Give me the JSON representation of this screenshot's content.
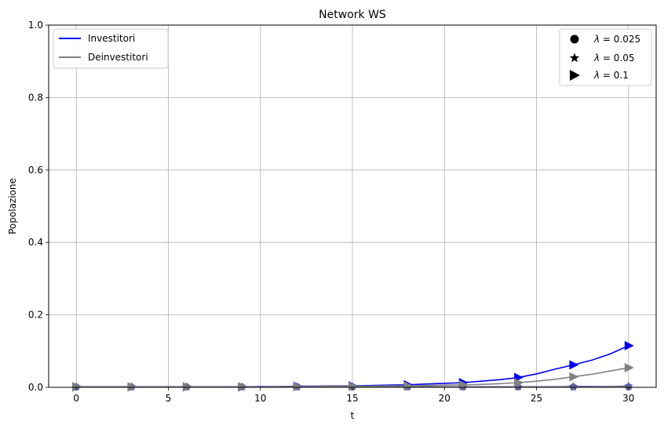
{
  "chart_data": {
    "type": "line",
    "title": "Network WS",
    "xlabel": "t",
    "ylabel": "Popolazione",
    "xlim": [
      -1.5,
      31.5
    ],
    "ylim": [
      0,
      1
    ],
    "xticks": [
      "0",
      "5",
      "10",
      "15",
      "20",
      "25",
      "30"
    ],
    "xtick_values": [
      0,
      5,
      10,
      15,
      20,
      25,
      30
    ],
    "yticks": [
      "0.0",
      "0.2",
      "0.4",
      "0.6",
      "0.8",
      "1.0"
    ],
    "ytick_values": [
      0,
      0.2,
      0.4,
      0.6,
      0.8,
      1.0
    ],
    "grid": true,
    "legend_color": {
      "placement": "top-left",
      "entries": [
        {
          "label": "Investitori",
          "color": "#0000ee"
        },
        {
          "label": "Deinvestitori",
          "color": "#808080"
        }
      ]
    },
    "legend_marker": {
      "placement": "top-right",
      "entries": [
        {
          "label": "λ = 0.025",
          "lam": "λ",
          "eq": " = 0.025",
          "marker": "circle"
        },
        {
          "label": "λ = 0.05",
          "lam": "λ",
          "eq": " = 0.05",
          "marker": "star"
        },
        {
          "label": "λ = 0.1",
          "lam": "λ",
          "eq": " = 0.1",
          "marker": "triangle-right"
        }
      ]
    },
    "x": [
      0,
      1,
      2,
      3,
      4,
      5,
      6,
      7,
      8,
      9,
      10,
      11,
      12,
      13,
      14,
      15,
      16,
      17,
      18,
      19,
      20,
      21,
      22,
      23,
      24,
      25,
      26,
      27,
      28,
      29,
      30
    ],
    "marker_every": 3,
    "series": [
      {
        "group": "Investitori",
        "lambda": 0.025,
        "marker": "circle",
        "color": "#0000ee",
        "values": [
          0.001,
          0.001,
          0.001,
          0.001,
          0.001,
          0.001,
          0.001,
          0.001,
          0.001,
          0.001,
          0.001,
          0.001,
          0.001,
          0.001,
          0.001,
          0.001,
          0.001,
          0.001,
          0.001,
          0.001,
          0.001,
          0.001,
          0.001,
          0.001,
          0.001,
          0.001,
          0.001,
          0.001,
          0.001,
          0.001,
          0.001
        ]
      },
      {
        "group": "Deinvestitori",
        "lambda": 0.025,
        "marker": "circle",
        "color": "#808080",
        "values": [
          0.001,
          0.001,
          0.001,
          0.001,
          0.001,
          0.001,
          0.001,
          0.001,
          0.001,
          0.001,
          0.001,
          0.001,
          0.001,
          0.001,
          0.001,
          0.001,
          0.001,
          0.001,
          0.001,
          0.001,
          0.001,
          0.001,
          0.001,
          0.001,
          0.001,
          0.001,
          0.001,
          0.001,
          0.001,
          0.001,
          0.001
        ]
      },
      {
        "group": "Investitori",
        "lambda": 0.05,
        "marker": "star",
        "color": "#0000ee",
        "values": [
          0.001,
          0.001,
          0.001,
          0.001,
          0.001,
          0.001,
          0.001,
          0.001,
          0.001,
          0.001,
          0.001,
          0.001,
          0.001,
          0.001,
          0.001,
          0.001,
          0.001,
          0.001,
          0.001,
          0.001,
          0.001,
          0.001,
          0.001,
          0.001,
          0.001,
          0.001,
          0.001,
          0.002,
          0.002,
          0.002,
          0.003
        ]
      },
      {
        "group": "Deinvestitori",
        "lambda": 0.05,
        "marker": "star",
        "color": "#808080",
        "values": [
          0.001,
          0.001,
          0.001,
          0.001,
          0.001,
          0.001,
          0.001,
          0.001,
          0.001,
          0.001,
          0.001,
          0.001,
          0.001,
          0.001,
          0.001,
          0.001,
          0.001,
          0.001,
          0.001,
          0.001,
          0.001,
          0.001,
          0.001,
          0.001,
          0.001,
          0.001,
          0.001,
          0.001,
          0.001,
          0.002,
          0.002
        ]
      },
      {
        "group": "Investitori",
        "lambda": 0.1,
        "marker": "triangle-right",
        "color": "#0000ee",
        "values": [
          0.001,
          0.001,
          0.001,
          0.001,
          0.001,
          0.001,
          0.001,
          0.001,
          0.001,
          0.001,
          0.002,
          0.002,
          0.003,
          0.003,
          0.004,
          0.004,
          0.005,
          0.006,
          0.007,
          0.009,
          0.011,
          0.013,
          0.017,
          0.021,
          0.027,
          0.037,
          0.05,
          0.062,
          0.075,
          0.092,
          0.115
        ]
      },
      {
        "group": "Deinvestitori",
        "lambda": 0.1,
        "marker": "triangle-right",
        "color": "#808080",
        "values": [
          0.001,
          0.001,
          0.001,
          0.001,
          0.001,
          0.001,
          0.001,
          0.001,
          0.001,
          0.001,
          0.001,
          0.002,
          0.002,
          0.002,
          0.003,
          0.003,
          0.003,
          0.004,
          0.004,
          0.005,
          0.006,
          0.007,
          0.008,
          0.01,
          0.013,
          0.017,
          0.022,
          0.029,
          0.036,
          0.045,
          0.054
        ]
      }
    ]
  }
}
